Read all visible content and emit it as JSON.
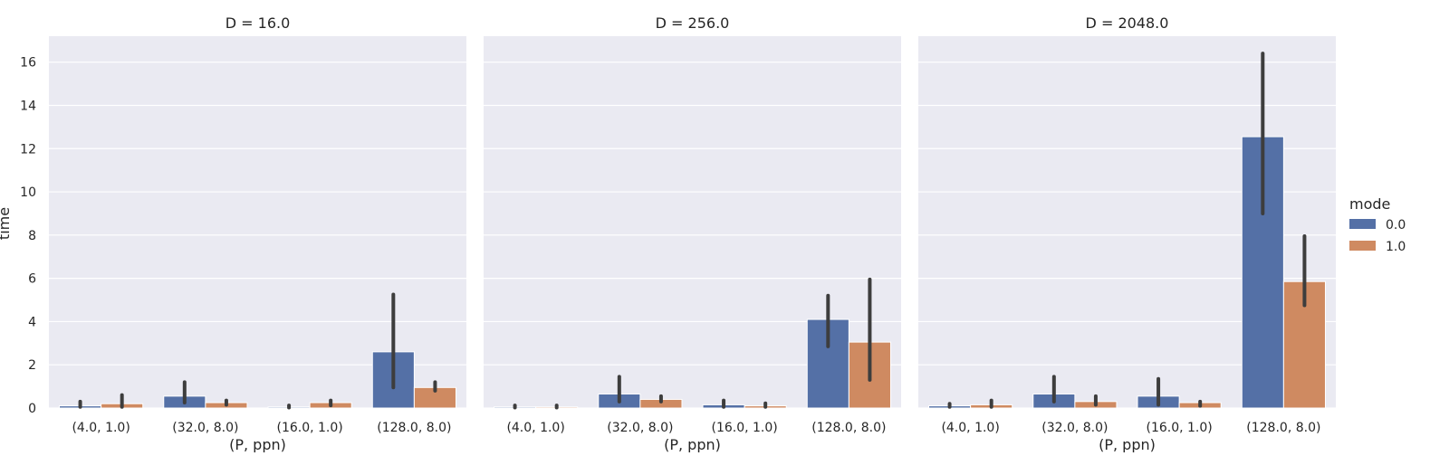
{
  "chart_data": {
    "type": "bar",
    "ylabel": "time",
    "xlabel": "(P, ppn)",
    "ylim": [
      0,
      17.2
    ],
    "yticks": [
      0,
      2,
      4,
      6,
      8,
      10,
      12,
      14,
      16
    ],
    "categories": [
      "(4.0, 1.0)",
      "(32.0, 8.0)",
      "(16.0, 1.0)",
      "(128.0, 8.0)"
    ],
    "grid": true,
    "legend": {
      "title": "mode",
      "placement": "right",
      "entries": [
        {
          "label": "0.0",
          "color": "#5470a6"
        },
        {
          "label": "1.0",
          "color": "#cf8a61"
        }
      ]
    },
    "panels": [
      {
        "title": "D = 16.0",
        "series": [
          {
            "name": "0.0",
            "values": [
              0.1,
              0.55,
              0.05,
              2.6
            ],
            "err_low": [
              0.05,
              0.25,
              0.02,
              0.95
            ],
            "err_high": [
              0.3,
              1.2,
              0.12,
              5.25
            ]
          },
          {
            "name": "1.0",
            "values": [
              0.2,
              0.25,
              0.25,
              0.95
            ],
            "err_low": [
              0.05,
              0.15,
              0.12,
              0.8
            ],
            "err_high": [
              0.6,
              0.35,
              0.35,
              1.2
            ]
          }
        ]
      },
      {
        "title": "D = 256.0",
        "series": [
          {
            "name": "0.0",
            "values": [
              0.05,
              0.65,
              0.15,
              4.1
            ],
            "err_low": [
              0.02,
              0.3,
              0.05,
              2.85
            ],
            "err_high": [
              0.12,
              1.45,
              0.35,
              5.2
            ]
          },
          {
            "name": "1.0",
            "values": [
              0.05,
              0.4,
              0.1,
              3.05
            ],
            "err_low": [
              0.02,
              0.3,
              0.05,
              1.3
            ],
            "err_high": [
              0.12,
              0.55,
              0.22,
              5.95
            ]
          }
        ]
      },
      {
        "title": "D = 2048.0",
        "series": [
          {
            "name": "0.0",
            "values": [
              0.1,
              0.65,
              0.55,
              12.55
            ],
            "err_low": [
              0.05,
              0.3,
              0.15,
              9.0
            ],
            "err_high": [
              0.2,
              1.45,
              1.35,
              16.4
            ]
          },
          {
            "name": "1.0",
            "values": [
              0.15,
              0.3,
              0.25,
              5.85
            ],
            "err_low": [
              0.05,
              0.15,
              0.1,
              4.75
            ],
            "err_high": [
              0.35,
              0.55,
              0.3,
              7.95
            ]
          }
        ]
      }
    ]
  }
}
